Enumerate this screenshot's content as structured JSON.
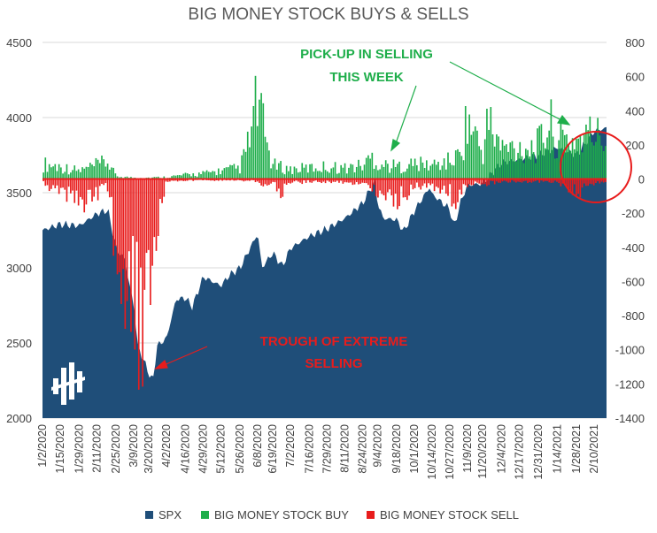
{
  "chart_data": {
    "type": "area",
    "title": "BIG MONEY STOCK BUYS & SELLS",
    "left_axis": {
      "ylim": [
        2000,
        4500
      ],
      "ticks": [
        "2000",
        "2500",
        "3000",
        "3500",
        "4000",
        "4500"
      ]
    },
    "right_axis": {
      "ylim": [
        -1400,
        800
      ],
      "ticks": [
        "800",
        "600",
        "400",
        "200",
        "0",
        "-200",
        "-400",
        "-600",
        "-800",
        "-1000",
        "-1200",
        "-1400"
      ]
    },
    "x_ticks": [
      "1/2/2020",
      "1/15/2020",
      "1/29/2020",
      "2/11/2020",
      "2/25/2020",
      "3/9/2020",
      "3/20/2020",
      "4/2/2020",
      "4/16/2020",
      "4/29/2020",
      "5/12/2020",
      "5/26/2020",
      "6/8/2020",
      "6/19/2020",
      "7/2/2020",
      "7/16/2020",
      "7/29/2020",
      "8/11/2020",
      "8/24/2020",
      "9/4/2020",
      "9/18/2020",
      "10/1/2020",
      "10/14/2020",
      "10/27/2020",
      "11/9/2020",
      "11/20/2020",
      "12/4/2020",
      "12/17/2020",
      "12/31/2020",
      "1/14/2021",
      "1/28/2021",
      "2/10/2021"
    ],
    "legend_position": "bottom",
    "series": [
      {
        "name": "SPX",
        "axis": "left",
        "color": "#1f4e79",
        "points": [
          [
            "1/2/2020",
            3250
          ],
          [
            "1/15/2020",
            3290
          ],
          [
            "1/29/2020",
            3280
          ],
          [
            "2/11/2020",
            3360
          ],
          [
            "2/19/2020",
            3385
          ],
          [
            "2/25/2020",
            3130
          ],
          [
            "3/2/2020",
            3060
          ],
          [
            "3/9/2020",
            2750
          ],
          [
            "3/12/2020",
            2480
          ],
          [
            "3/16/2020",
            2390
          ],
          [
            "3/20/2020",
            2300
          ],
          [
            "3/23/2020",
            2240
          ],
          [
            "3/26/2020",
            2480
          ],
          [
            "4/2/2020",
            2530
          ],
          [
            "4/9/2020",
            2790
          ],
          [
            "4/16/2020",
            2800
          ],
          [
            "4/21/2020",
            2740
          ],
          [
            "4/29/2020",
            2940
          ],
          [
            "5/12/2020",
            2880
          ],
          [
            "5/18/2020",
            2950
          ],
          [
            "5/26/2020",
            3000
          ],
          [
            "6/8/2020",
            3230
          ],
          [
            "6/11/2020",
            3000
          ],
          [
            "6/19/2020",
            3100
          ],
          [
            "6/26/2020",
            3010
          ],
          [
            "7/2/2020",
            3130
          ],
          [
            "7/16/2020",
            3210
          ],
          [
            "7/29/2020",
            3260
          ],
          [
            "8/11/2020",
            3330
          ],
          [
            "8/24/2020",
            3430
          ],
          [
            "9/2/2020",
            3580
          ],
          [
            "9/4/2020",
            3430
          ],
          [
            "9/8/2020",
            3330
          ],
          [
            "9/18/2020",
            3320
          ],
          [
            "9/23/2020",
            3240
          ],
          [
            "10/1/2020",
            3380
          ],
          [
            "10/12/2020",
            3535
          ],
          [
            "10/14/2020",
            3490
          ],
          [
            "10/27/2020",
            3390
          ],
          [
            "10/30/2020",
            3270
          ],
          [
            "11/4/2020",
            3440
          ],
          [
            "11/9/2020",
            3550
          ],
          [
            "11/20/2020",
            3560
          ],
          [
            "12/4/2020",
            3700
          ],
          [
            "12/17/2020",
            3720
          ],
          [
            "12/31/2020",
            3750
          ],
          [
            "1/14/2021",
            3800
          ],
          [
            "1/28/2021",
            3750
          ],
          [
            "2/10/2021",
            3910
          ],
          [
            "2/19/2021",
            3930
          ]
        ]
      },
      {
        "name": "BIG MONEY STOCK BUY",
        "axis": "right",
        "color": "#1fae4b",
        "points": [
          [
            "1/2/2020",
            110
          ],
          [
            "1/15/2020",
            90
          ],
          [
            "1/29/2020",
            60
          ],
          [
            "2/11/2020",
            100
          ],
          [
            "2/19/2020",
            125
          ],
          [
            "2/25/2020",
            20
          ],
          [
            "3/9/2020",
            10
          ],
          [
            "3/20/2020",
            10
          ],
          [
            "4/2/2020",
            15
          ],
          [
            "4/16/2020",
            30
          ],
          [
            "4/29/2020",
            40
          ],
          [
            "5/12/2020",
            60
          ],
          [
            "5/26/2020",
            80
          ],
          [
            "6/2/2020",
            280
          ],
          [
            "6/8/2020",
            590
          ],
          [
            "6/10/2020",
            440
          ],
          [
            "6/19/2020",
            100
          ],
          [
            "7/2/2020",
            70
          ],
          [
            "7/16/2020",
            80
          ],
          [
            "7/29/2020",
            90
          ],
          [
            "8/11/2020",
            80
          ],
          [
            "8/24/2020",
            100
          ],
          [
            "9/1/2020",
            170
          ],
          [
            "9/4/2020",
            110
          ],
          [
            "9/18/2020",
            90
          ],
          [
            "10/1/2020",
            110
          ],
          [
            "10/14/2020",
            100
          ],
          [
            "10/27/2020",
            130
          ],
          [
            "11/3/2020",
            170
          ],
          [
            "11/9/2020",
            440
          ],
          [
            "11/20/2020",
            190
          ],
          [
            "11/24/2020",
            420
          ],
          [
            "12/4/2020",
            220
          ],
          [
            "12/17/2020",
            230
          ],
          [
            "12/31/2020",
            240
          ],
          [
            "1/8/2021",
            410
          ],
          [
            "1/14/2021",
            280
          ],
          [
            "1/28/2021",
            290
          ],
          [
            "2/10/2021",
            330
          ],
          [
            "2/19/2021",
            280
          ]
        ]
      },
      {
        "name": "BIG MONEY STOCK SELL",
        "axis": "right",
        "color": "#e81c1c",
        "points": [
          [
            "1/2/2020",
            -40
          ],
          [
            "1/15/2020",
            -90
          ],
          [
            "1/29/2020",
            -190
          ],
          [
            "2/11/2020",
            -110
          ],
          [
            "2/19/2020",
            -60
          ],
          [
            "2/25/2020",
            -520
          ],
          [
            "3/2/2020",
            -760
          ],
          [
            "3/9/2020",
            -1080
          ],
          [
            "3/12/2020",
            -1200
          ],
          [
            "3/16/2020",
            -1160
          ],
          [
            "3/20/2020",
            -780
          ],
          [
            "3/23/2020",
            -490
          ],
          [
            "4/2/2020",
            -20
          ],
          [
            "4/16/2020",
            -10
          ],
          [
            "4/29/2020",
            -10
          ],
          [
            "5/12/2020",
            -10
          ],
          [
            "5/26/2020",
            -10
          ],
          [
            "6/8/2020",
            -20
          ],
          [
            "6/11/2020",
            -40
          ],
          [
            "6/19/2020",
            -30
          ],
          [
            "6/26/2020",
            -110
          ],
          [
            "7/2/2020",
            -30
          ],
          [
            "7/16/2020",
            -20
          ],
          [
            "7/29/2020",
            -20
          ],
          [
            "8/11/2020",
            -30
          ],
          [
            "8/24/2020",
            -40
          ],
          [
            "9/4/2020",
            -90
          ],
          [
            "9/8/2020",
            -110
          ],
          [
            "9/18/2020",
            -150
          ],
          [
            "9/23/2020",
            -130
          ],
          [
            "10/1/2020",
            -50
          ],
          [
            "10/14/2020",
            -60
          ],
          [
            "10/27/2020",
            -90
          ],
          [
            "10/30/2020",
            -190
          ],
          [
            "11/9/2020",
            -40
          ],
          [
            "11/20/2020",
            -40
          ],
          [
            "12/4/2020",
            -20
          ],
          [
            "12/17/2020",
            -20
          ],
          [
            "12/31/2020",
            -20
          ],
          [
            "1/14/2021",
            -20
          ],
          [
            "1/28/2021",
            -110
          ],
          [
            "2/10/2021",
            -30
          ],
          [
            "2/19/2021",
            -20
          ]
        ]
      }
    ],
    "annotations": [
      {
        "text_lines": [
          "PICK-UP IN SELLING",
          "THIS WEEK"
        ],
        "color": "#1fae4b"
      },
      {
        "text_lines": [
          "TROUGH OF EXTREME",
          "SELLING"
        ],
        "color": "#e81c1c"
      }
    ],
    "highlight_circle_color": "#e81c1c"
  }
}
